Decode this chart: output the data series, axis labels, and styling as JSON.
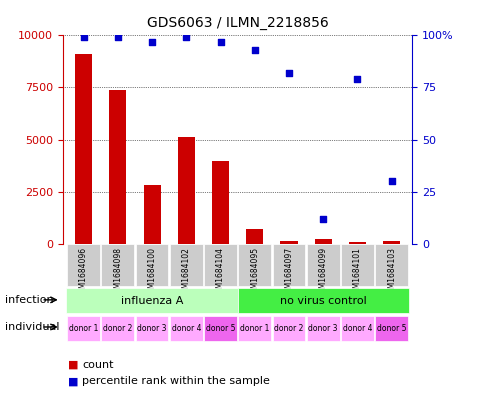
{
  "title": "GDS6063 / ILMN_2218856",
  "samples": [
    "GSM1684096",
    "GSM1684098",
    "GSM1684100",
    "GSM1684102",
    "GSM1684104",
    "GSM1684095",
    "GSM1684097",
    "GSM1684099",
    "GSM1684101",
    "GSM1684103"
  ],
  "counts": [
    9100,
    7400,
    2800,
    5100,
    3950,
    700,
    150,
    200,
    100,
    150
  ],
  "percentiles": [
    99,
    99,
    97,
    99,
    97,
    93,
    82,
    12,
    79,
    30
  ],
  "ylim_left": [
    0,
    10000
  ],
  "ylim_right": [
    0,
    100
  ],
  "yticks_left": [
    0,
    2500,
    5000,
    7500,
    10000
  ],
  "ytick_labels_left": [
    "0",
    "2500",
    "5000",
    "7500",
    "10000"
  ],
  "yticks_right": [
    0,
    25,
    50,
    75,
    100
  ],
  "ytick_labels_right": [
    "0",
    "25",
    "50",
    "75",
    "100%"
  ],
  "bar_color": "#cc0000",
  "dot_color": "#0000cc",
  "infection_groups": [
    {
      "label": "influenza A",
      "start": 0,
      "end": 5,
      "color": "#bbffbb"
    },
    {
      "label": "no virus control",
      "start": 5,
      "end": 10,
      "color": "#44ee44"
    }
  ],
  "individual_labels": [
    "donor 1",
    "donor 2",
    "donor 3",
    "donor 4",
    "donor 5",
    "donor 1",
    "donor 2",
    "donor 3",
    "donor 4",
    "donor 5"
  ],
  "individual_colors": [
    "#ffaaff",
    "#ffaaff",
    "#ffaaff",
    "#ffaaff",
    "#ee66ee",
    "#ffaaff",
    "#ffaaff",
    "#ffaaff",
    "#ffaaff",
    "#ee66ee"
  ],
  "tick_bg_color": "#cccccc",
  "legend_count_color": "#cc0000",
  "legend_dot_color": "#0000cc",
  "infection_row_label": "infection",
  "individual_row_label": "individual"
}
